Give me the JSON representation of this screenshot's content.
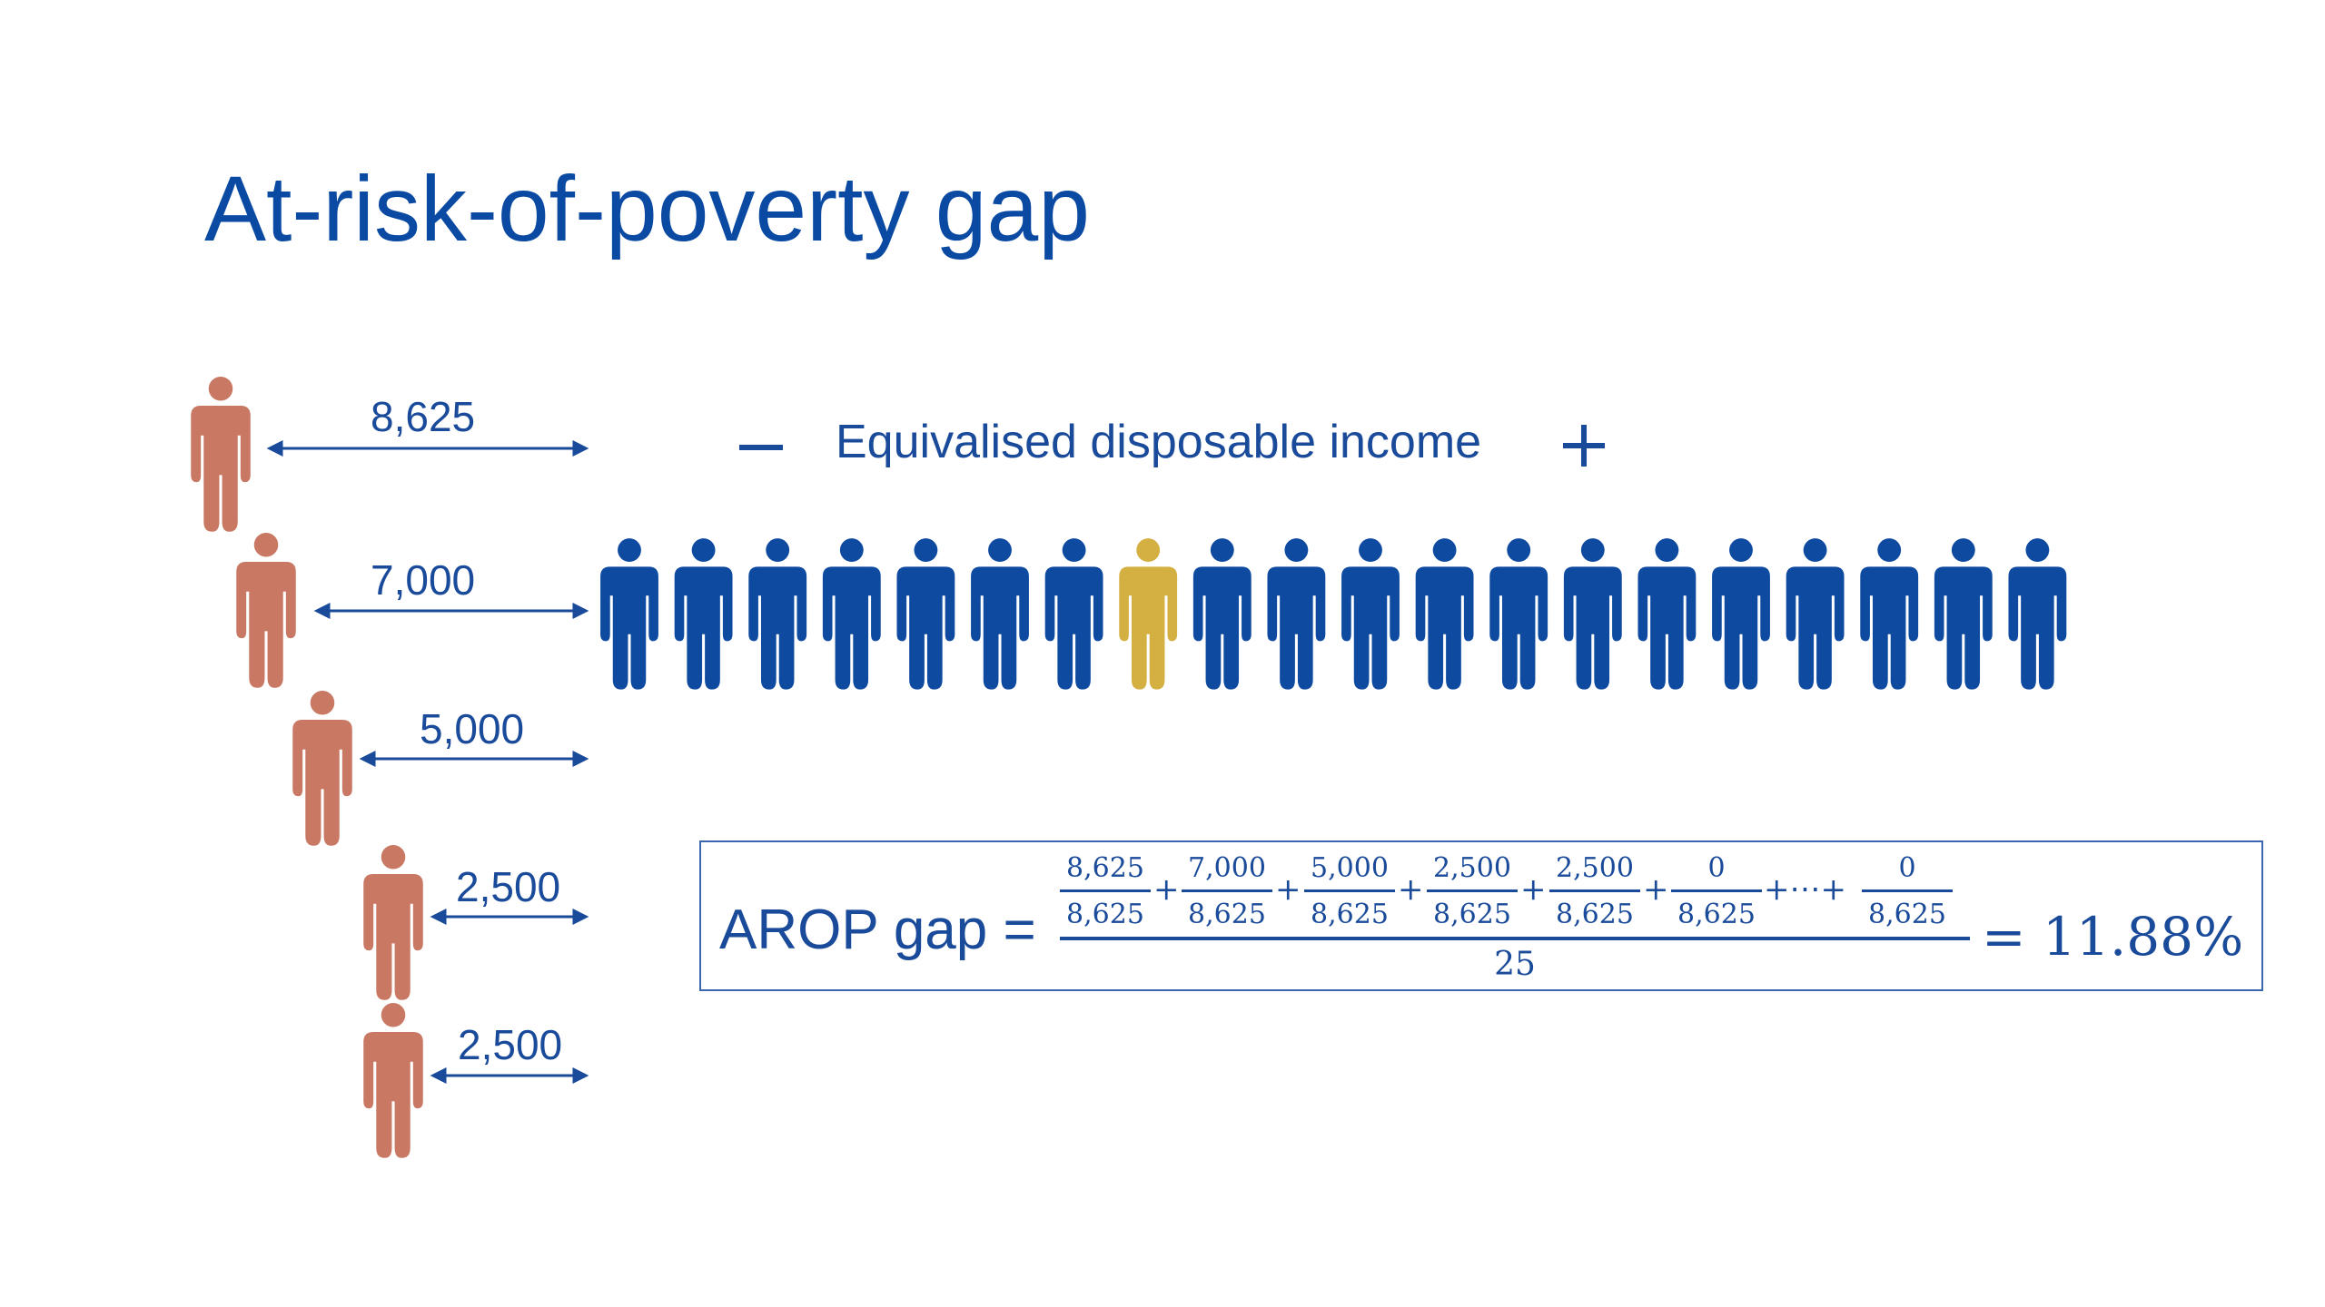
{
  "title": "At-risk-of-poverty gap",
  "poverty_gaps": [
    "8,625",
    "7,000",
    "5,000",
    "2,500",
    "2,500"
  ],
  "income_axis": {
    "label": "Equivalised disposable income",
    "minus": "−",
    "plus": "+"
  },
  "population": {
    "count": 20,
    "highlighted_index": 7,
    "colors": {
      "population": "#0d4aa0",
      "threshold_person": "#d4b042",
      "poor": "#c97863"
    }
  },
  "formula": {
    "lhs": "AROP gap =",
    "fractions": [
      {
        "num": "8,625",
        "den": "8,625"
      },
      {
        "num": "7,000",
        "den": "8,625"
      },
      {
        "num": "5,000",
        "den": "8,625"
      },
      {
        "num": "2,500",
        "den": "8,625"
      },
      {
        "num": "2,500",
        "den": "8,625"
      },
      {
        "num": "0",
        "den": "8,625"
      },
      {
        "num": "0",
        "den": "8,625"
      }
    ],
    "plus": "+",
    "ellipsis": "+⋯+",
    "denominator": "25",
    "result": "= 11.88%"
  }
}
